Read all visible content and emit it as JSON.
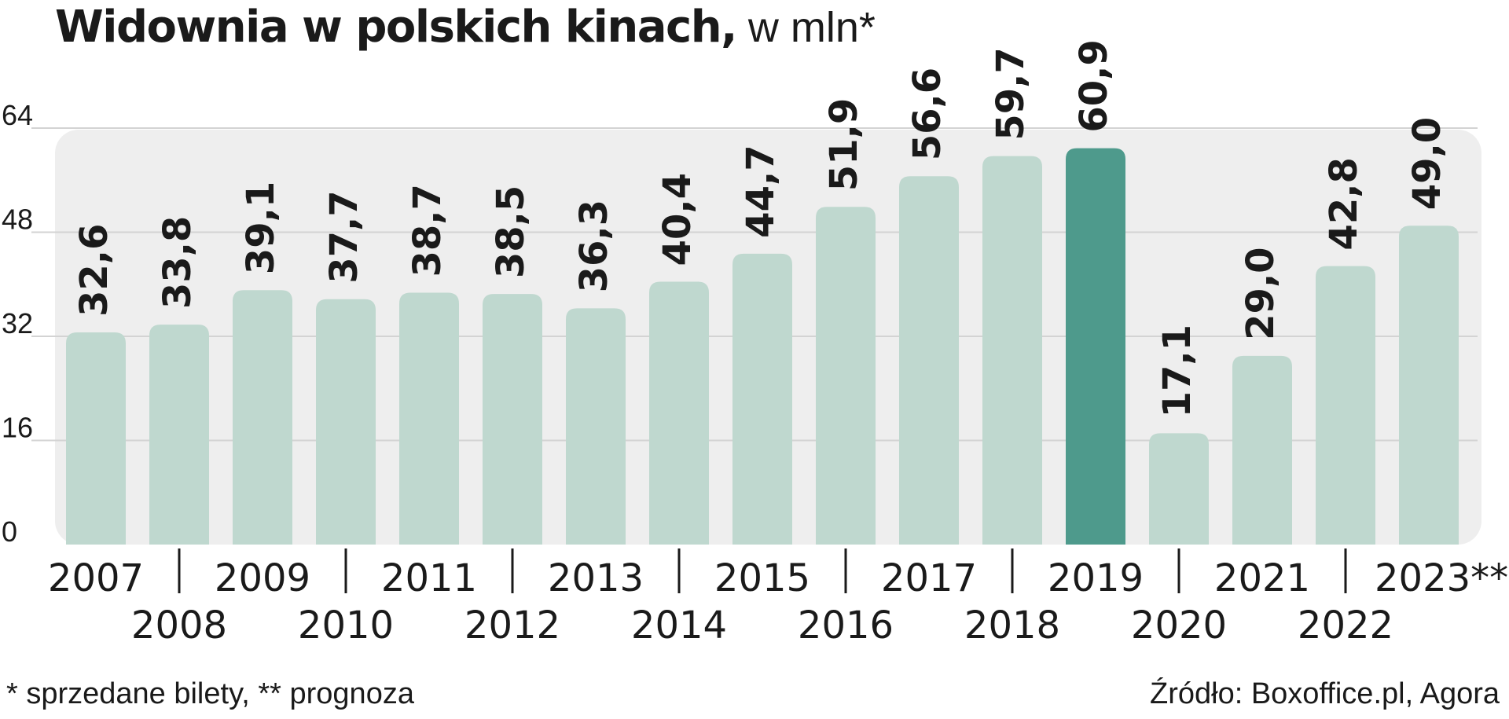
{
  "title": {
    "main": "Widownia w polskich kinach,",
    "unit": " w mln*"
  },
  "footer": {
    "note": "* sprzedane bilety, ** prognoza",
    "source": "Źródło: Boxoffice.pl, Agora"
  },
  "colors": {
    "bar": "#bfd8cf",
    "highlight": "#4e9a8c",
    "panel": "#eeeeee",
    "grid": "#d3d3d3",
    "text": "#1a1a1a"
  },
  "chart_data": {
    "type": "bar",
    "title": "Widownia w polskich kinach, w mln*",
    "categories": [
      "2007",
      "2008",
      "2009",
      "2010",
      "2011",
      "2012",
      "2013",
      "2014",
      "2015",
      "2016",
      "2017",
      "2018",
      "2019",
      "2020",
      "2021",
      "2022",
      "2023**"
    ],
    "values": [
      32.6,
      33.8,
      39.1,
      37.7,
      38.7,
      38.5,
      36.3,
      40.4,
      44.7,
      51.9,
      56.6,
      59.7,
      60.9,
      17.1,
      29.0,
      42.8,
      49.0
    ],
    "value_labels": [
      "32,6",
      "33,8",
      "39,1",
      "37,7",
      "38,7",
      "38,5",
      "36,3",
      "40,4",
      "44,7",
      "51,9",
      "56,6",
      "59,7",
      "60,9",
      "17,1",
      "29,0",
      "42,8",
      "49,0"
    ],
    "highlight_index": 12,
    "yticks": [
      0,
      16,
      32,
      48,
      64
    ],
    "ylim": [
      0,
      64
    ],
    "xlabel": "",
    "ylabel": "",
    "grid": true,
    "legend": "none"
  }
}
